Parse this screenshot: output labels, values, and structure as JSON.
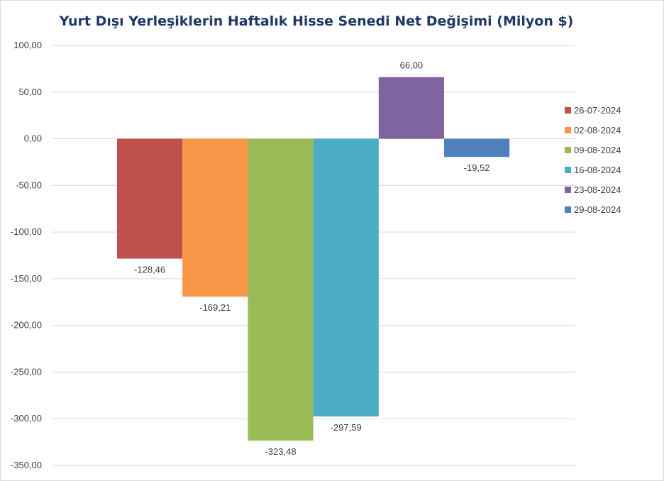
{
  "chart_data": {
    "type": "bar",
    "title": "Yurt Dışı Yerleşiklerin Haftalık Hisse Senedi Net Değişimi (Milyon $)",
    "xlabel": "",
    "ylabel": "",
    "ylim": [
      -350,
      100
    ],
    "y_tick_step": 50,
    "y_tick_labels": [
      "100,00",
      "50,00",
      "0,00",
      "-50,00",
      "-100,00",
      "-150,00",
      "-200,00",
      "-250,00",
      "-300,00",
      "-350,00"
    ],
    "grid": true,
    "legend_position": "right",
    "series": [
      {
        "name": "26-07-2024",
        "value": -128.46,
        "label": "-128,46",
        "color": "#c0504d"
      },
      {
        "name": "02-08-2024",
        "value": -169.21,
        "label": "-169,21",
        "color": "#f79646"
      },
      {
        "name": "09-08-2024",
        "value": -323.48,
        "label": "-323,48",
        "color": "#9bbb59"
      },
      {
        "name": "16-08-2024",
        "value": -297.59,
        "label": "-297,59",
        "color": "#4bacc6"
      },
      {
        "name": "23-08-2024",
        "value": 66.0,
        "label": "66,00",
        "color": "#8064a2"
      },
      {
        "name": "29-08-2024",
        "value": -19.52,
        "label": "-19,52",
        "color": "#4f81bd"
      }
    ]
  }
}
